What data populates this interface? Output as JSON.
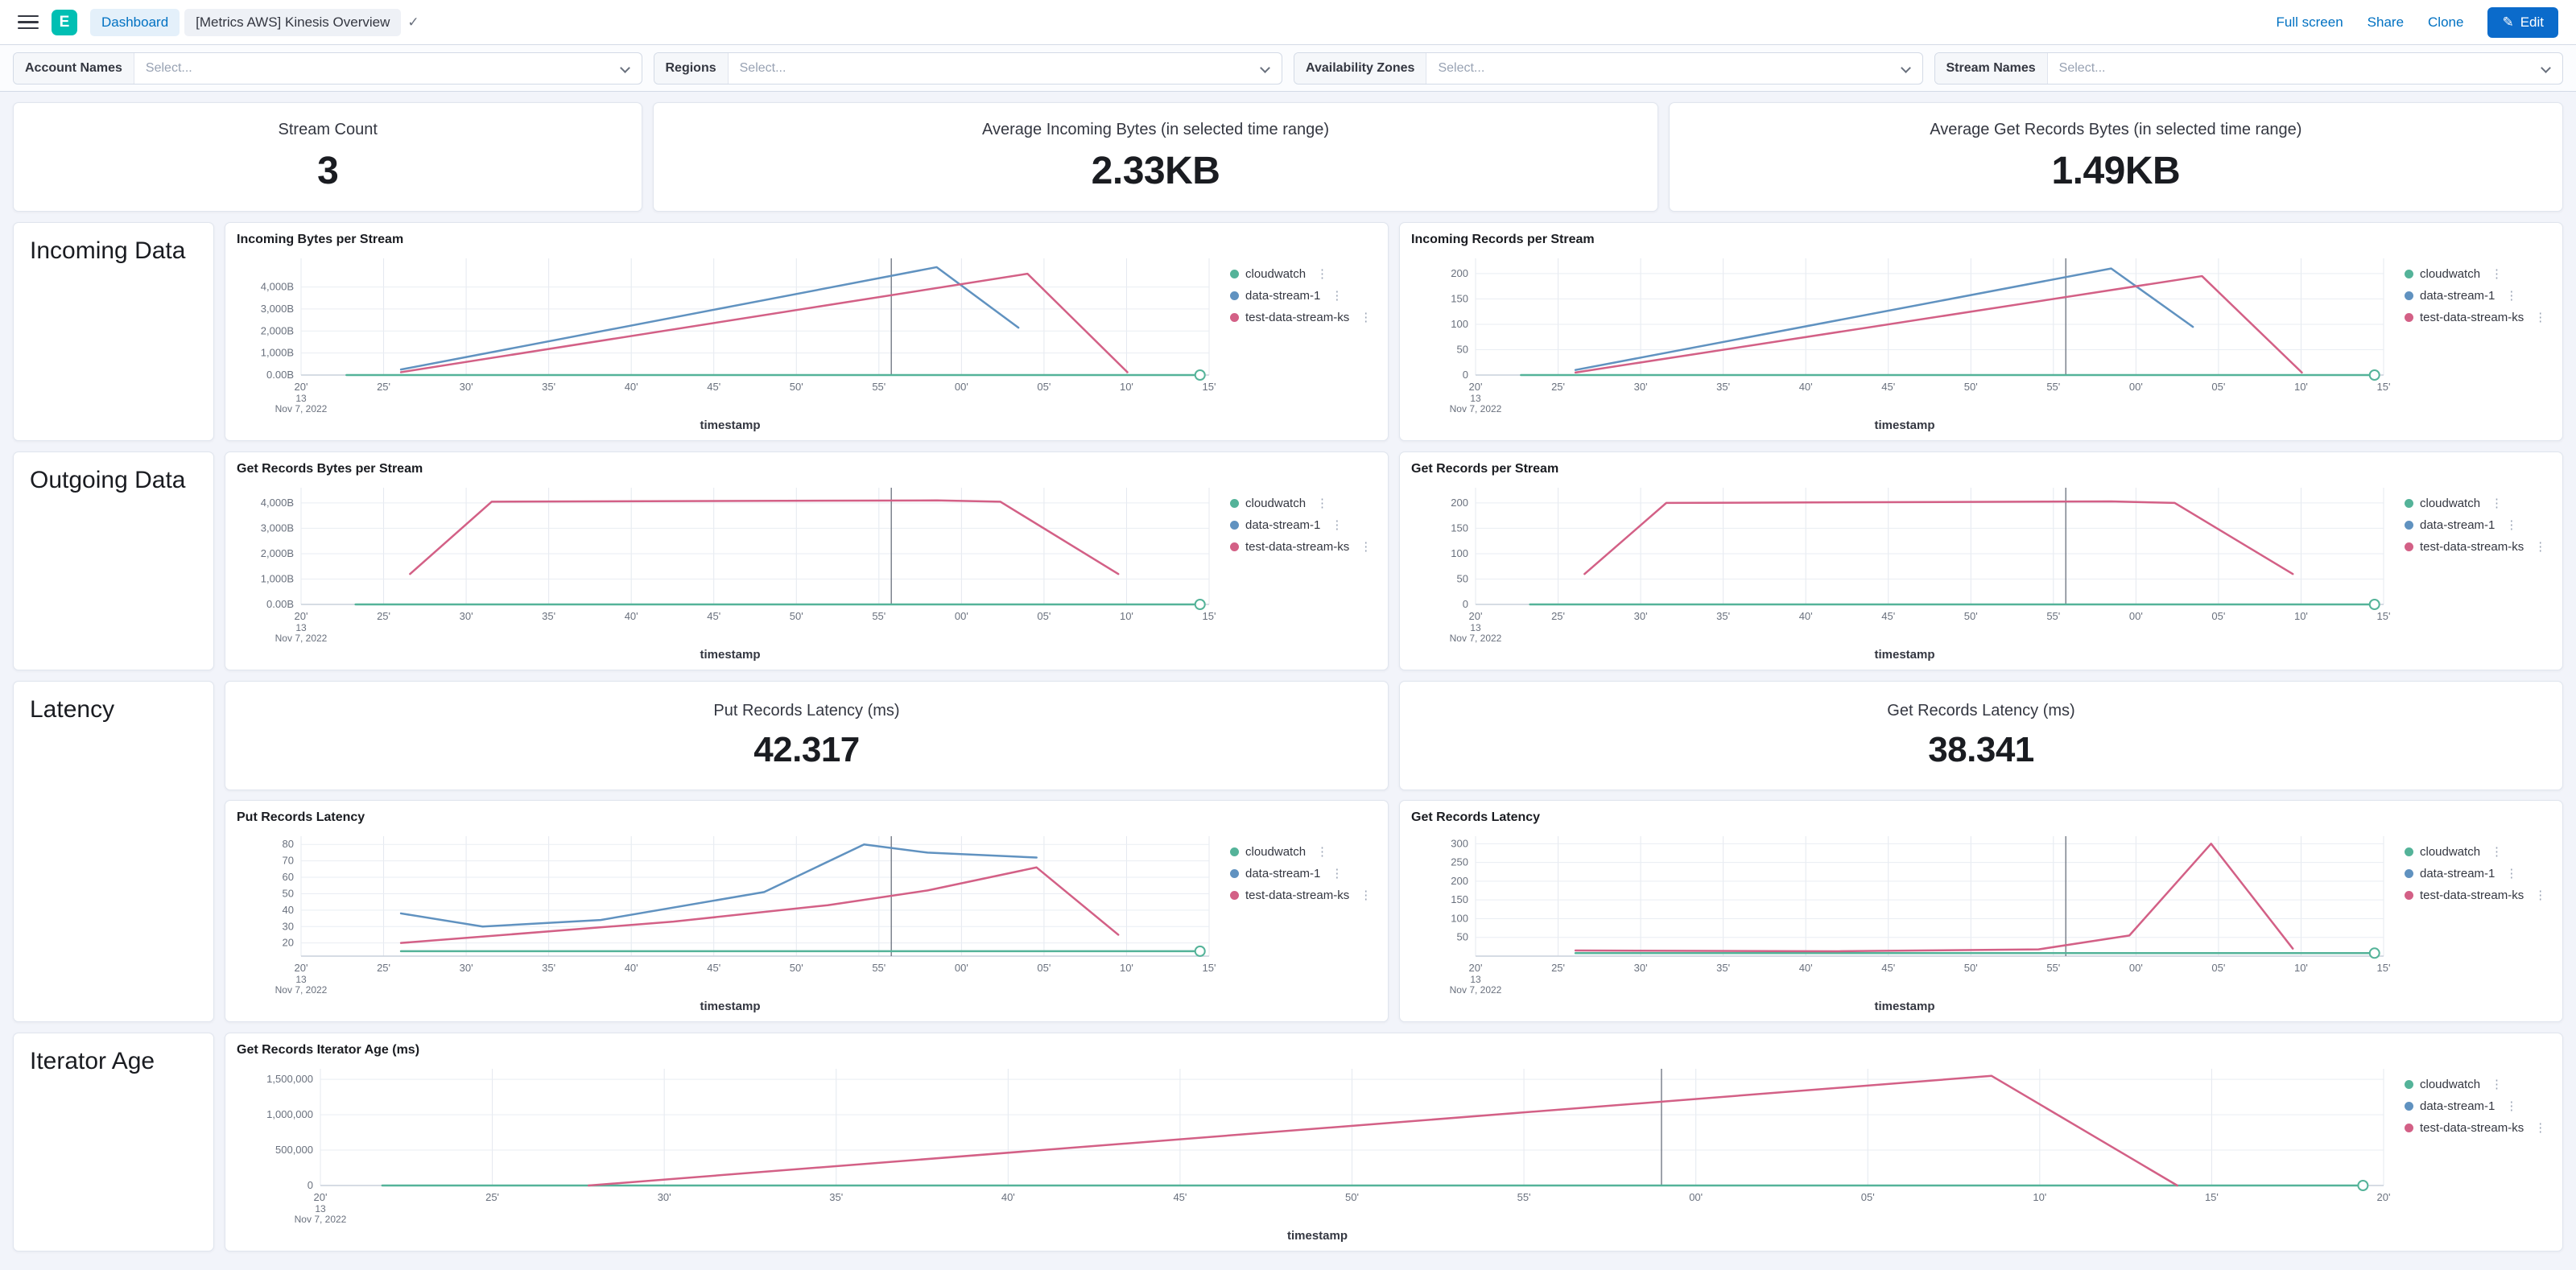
{
  "nav": {
    "breadcrumb_primary": "Dashboard",
    "breadcrumb_secondary": "[Metrics AWS] Kinesis Overview",
    "actions": {
      "full_screen": "Full screen",
      "share": "Share",
      "clone": "Clone",
      "edit": "Edit"
    }
  },
  "filters": [
    {
      "label": "Account Names",
      "placeholder": "Select..."
    },
    {
      "label": "Regions",
      "placeholder": "Select..."
    },
    {
      "label": "Availability Zones",
      "placeholder": "Select..."
    },
    {
      "label": "Stream Names",
      "placeholder": "Select..."
    }
  ],
  "metrics": [
    {
      "label": "Stream Count",
      "value": "3"
    },
    {
      "label": "Average Incoming Bytes (in selected time range)",
      "value": "2.33KB"
    },
    {
      "label": "Average Get Records Bytes (in selected time range)",
      "value": "1.49KB"
    }
  ],
  "rows": {
    "incoming": "Incoming Data",
    "outgoing": "Outgoing Data",
    "latency": "Latency",
    "iterator": "Iterator Age"
  },
  "latency_metrics": [
    {
      "label": "Put Records Latency (ms)",
      "value": "42.317"
    },
    {
      "label": "Get Records Latency (ms)",
      "value": "38.341"
    }
  ],
  "colors": {
    "cloudwatch": "#54B399",
    "data_stream_1": "#6092C0",
    "test_data_stream_ks": "#D36086",
    "accent": "#0071c2"
  },
  "chart_data": {
    "legend_items": [
      {
        "label": "cloudwatch",
        "color": "#54B399"
      },
      {
        "label": "data-stream-1",
        "color": "#6092C0"
      },
      {
        "label": "test-data-stream-ks",
        "color": "#D36086"
      }
    ],
    "incoming_bytes": {
      "type": "line",
      "title": "Incoming Bytes per Stream",
      "xlabel": "timestamp",
      "xticks": [
        "20'",
        "25'",
        "30'",
        "35'",
        "40'",
        "45'",
        "50'",
        "55'",
        "00'",
        "05'",
        "10'",
        "15'"
      ],
      "x_origin_extra": [
        "13",
        "Nov 7, 2022"
      ],
      "yticks": [
        {
          "v": 0,
          "label": "0.00B"
        },
        {
          "v": 1000,
          "label": "1,000B"
        },
        {
          "v": 2000,
          "label": "2,000B"
        },
        {
          "v": 3000,
          "label": "3,000B"
        },
        {
          "v": 4000,
          "label": "4,000B"
        }
      ],
      "ymin": 0,
      "ymax": 5300,
      "annotation_x": 65,
      "series": [
        {
          "name": "cloudwatch",
          "color": "#54B399",
          "points": [
            [
              5,
              0
            ],
            [
              99,
              0
            ]
          ],
          "end_marker": true
        },
        {
          "name": "data-stream-1",
          "color": "#6092C0",
          "points": [
            [
              11,
              250
            ],
            [
              70,
              4900
            ],
            [
              79,
              2150
            ]
          ]
        },
        {
          "name": "test-data-stream-ks",
          "color": "#D36086",
          "points": [
            [
              11,
              130
            ],
            [
              80,
              4600
            ],
            [
              91,
              130
            ]
          ]
        }
      ]
    },
    "incoming_records": {
      "type": "line",
      "title": "Incoming Records per Stream",
      "xlabel": "timestamp",
      "xticks": [
        "20'",
        "25'",
        "30'",
        "35'",
        "40'",
        "45'",
        "50'",
        "55'",
        "00'",
        "05'",
        "10'",
        "15'"
      ],
      "x_origin_extra": [
        "13",
        "Nov 7, 2022"
      ],
      "yticks": [
        {
          "v": 0,
          "label": "0"
        },
        {
          "v": 50,
          "label": "50"
        },
        {
          "v": 100,
          "label": "100"
        },
        {
          "v": 150,
          "label": "150"
        },
        {
          "v": 200,
          "label": "200"
        }
      ],
      "ymin": 0,
      "ymax": 230,
      "annotation_x": 65,
      "series": [
        {
          "name": "cloudwatch",
          "color": "#54B399",
          "points": [
            [
              5,
              0
            ],
            [
              99,
              0
            ]
          ],
          "end_marker": true
        },
        {
          "name": "data-stream-1",
          "color": "#6092C0",
          "points": [
            [
              11,
              10
            ],
            [
              70,
              210
            ],
            [
              79,
              95
            ]
          ]
        },
        {
          "name": "test-data-stream-ks",
          "color": "#D36086",
          "points": [
            [
              11,
              5
            ],
            [
              80,
              195
            ],
            [
              91,
              5
            ]
          ]
        }
      ]
    },
    "get_records_bytes": {
      "type": "line",
      "title": "Get Records Bytes per Stream",
      "xlabel": "timestamp",
      "xticks": [
        "20'",
        "25'",
        "30'",
        "35'",
        "40'",
        "45'",
        "50'",
        "55'",
        "00'",
        "05'",
        "10'",
        "15'"
      ],
      "x_origin_extra": [
        "13",
        "Nov 7, 2022"
      ],
      "yticks": [
        {
          "v": 0,
          "label": "0.00B"
        },
        {
          "v": 1000,
          "label": "1,000B"
        },
        {
          "v": 2000,
          "label": "2,000B"
        },
        {
          "v": 3000,
          "label": "3,000B"
        },
        {
          "v": 4000,
          "label": "4,000B"
        }
      ],
      "ymin": 0,
      "ymax": 4600,
      "annotation_x": 65,
      "series": [
        {
          "name": "cloudwatch",
          "color": "#54B399",
          "points": [
            [
              6,
              0
            ],
            [
              99,
              0
            ]
          ],
          "end_marker": true
        },
        {
          "name": "data-stream-1",
          "color": "#6092C0",
          "points": []
        },
        {
          "name": "test-data-stream-ks",
          "color": "#D36086",
          "points": [
            [
              12,
              1200
            ],
            [
              21,
              4050
            ],
            [
              70,
              4100
            ],
            [
              77,
              4050
            ],
            [
              90,
              1200
            ]
          ]
        }
      ]
    },
    "get_records": {
      "type": "line",
      "title": "Get Records per Stream",
      "xlabel": "timestamp",
      "xticks": [
        "20'",
        "25'",
        "30'",
        "35'",
        "40'",
        "45'",
        "50'",
        "55'",
        "00'",
        "05'",
        "10'",
        "15'"
      ],
      "x_origin_extra": [
        "13",
        "Nov 7, 2022"
      ],
      "yticks": [
        {
          "v": 0,
          "label": "0"
        },
        {
          "v": 50,
          "label": "50"
        },
        {
          "v": 100,
          "label": "100"
        },
        {
          "v": 150,
          "label": "150"
        },
        {
          "v": 200,
          "label": "200"
        }
      ],
      "ymin": 0,
      "ymax": 230,
      "annotation_x": 65,
      "series": [
        {
          "name": "cloudwatch",
          "color": "#54B399",
          "points": [
            [
              6,
              0
            ],
            [
              99,
              0
            ]
          ],
          "end_marker": true
        },
        {
          "name": "data-stream-1",
          "color": "#6092C0",
          "points": []
        },
        {
          "name": "test-data-stream-ks",
          "color": "#D36086",
          "points": [
            [
              12,
              60
            ],
            [
              21,
              200
            ],
            [
              70,
              203
            ],
            [
              77,
              200
            ],
            [
              90,
              60
            ]
          ]
        }
      ]
    },
    "put_latency": {
      "type": "line",
      "title": "Put Records Latency",
      "xlabel": "timestamp",
      "xticks": [
        "20'",
        "25'",
        "30'",
        "35'",
        "40'",
        "45'",
        "50'",
        "55'",
        "00'",
        "05'",
        "10'",
        "15'"
      ],
      "x_origin_extra": [
        "13",
        "Nov 7, 2022"
      ],
      "yticks": [
        {
          "v": 20,
          "label": "20"
        },
        {
          "v": 30,
          "label": "30"
        },
        {
          "v": 40,
          "label": "40"
        },
        {
          "v": 50,
          "label": "50"
        },
        {
          "v": 60,
          "label": "60"
        },
        {
          "v": 70,
          "label": "70"
        },
        {
          "v": 80,
          "label": "80"
        }
      ],
      "ymin": 12,
      "ymax": 85,
      "annotation_x": 65,
      "series": [
        {
          "name": "cloudwatch",
          "color": "#54B399",
          "points": [
            [
              11,
              15
            ],
            [
              99,
              15
            ]
          ],
          "end_marker": true
        },
        {
          "name": "data-stream-1",
          "color": "#6092C0",
          "points": [
            [
              11,
              38
            ],
            [
              20,
              30
            ],
            [
              33,
              34
            ],
            [
              51,
              51
            ],
            [
              62,
              80
            ],
            [
              69,
              75
            ],
            [
              81,
              72
            ]
          ]
        },
        {
          "name": "test-data-stream-ks",
          "color": "#D36086",
          "points": [
            [
              11,
              20
            ],
            [
              41,
              33
            ],
            [
              58,
              43
            ],
            [
              69,
              52
            ],
            [
              81,
              66
            ],
            [
              90,
              25
            ]
          ]
        }
      ]
    },
    "get_latency": {
      "type": "line",
      "title": "Get Records Latency",
      "xlabel": "timestamp",
      "xticks": [
        "20'",
        "25'",
        "30'",
        "35'",
        "40'",
        "45'",
        "50'",
        "55'",
        "00'",
        "05'",
        "10'",
        "15'"
      ],
      "x_origin_extra": [
        "13",
        "Nov 7, 2022"
      ],
      "yticks": [
        {
          "v": 50,
          "label": "50"
        },
        {
          "v": 100,
          "label": "100"
        },
        {
          "v": 150,
          "label": "150"
        },
        {
          "v": 200,
          "label": "200"
        },
        {
          "v": 250,
          "label": "250"
        },
        {
          "v": 300,
          "label": "300"
        }
      ],
      "ymin": 0,
      "ymax": 320,
      "annotation_x": 65,
      "series": [
        {
          "name": "cloudwatch",
          "color": "#54B399",
          "points": [
            [
              11,
              8
            ],
            [
              99,
              8
            ]
          ],
          "end_marker": true
        },
        {
          "name": "data-stream-1",
          "color": "#6092C0",
          "points": []
        },
        {
          "name": "test-data-stream-ks",
          "color": "#D36086",
          "points": [
            [
              11,
              15
            ],
            [
              40,
              13
            ],
            [
              62,
              18
            ],
            [
              72,
              55
            ],
            [
              81,
              300
            ],
            [
              90,
              20
            ]
          ]
        }
      ]
    },
    "iterator_age": {
      "type": "line",
      "title": "Get Records Iterator Age (ms)",
      "xlabel": "timestamp",
      "pad_left": 104,
      "xticks": [
        "20'",
        "25'",
        "30'",
        "35'",
        "40'",
        "45'",
        "50'",
        "55'",
        "00'",
        "05'",
        "10'",
        "15'",
        "20'"
      ],
      "x_origin_extra": [
        "13",
        "Nov 7, 2022"
      ],
      "yticks": [
        {
          "v": 0,
          "label": "0"
        },
        {
          "v": 500000,
          "label": "500,000"
        },
        {
          "v": 1000000,
          "label": "1,000,000"
        },
        {
          "v": 1500000,
          "label": "1,500,000"
        }
      ],
      "ymin": 0,
      "ymax": 1650000,
      "annotation_x": 65,
      "series": [
        {
          "name": "cloudwatch",
          "color": "#54B399",
          "points": [
            [
              3,
              0
            ],
            [
              99,
              0
            ]
          ],
          "end_marker": true
        },
        {
          "name": "data-stream-1",
          "color": "#6092C0",
          "points": []
        },
        {
          "name": "test-data-stream-ks",
          "color": "#D36086",
          "points": [
            [
              13,
              0
            ],
            [
              81,
              1550000
            ],
            [
              90,
              0
            ]
          ]
        }
      ]
    }
  }
}
